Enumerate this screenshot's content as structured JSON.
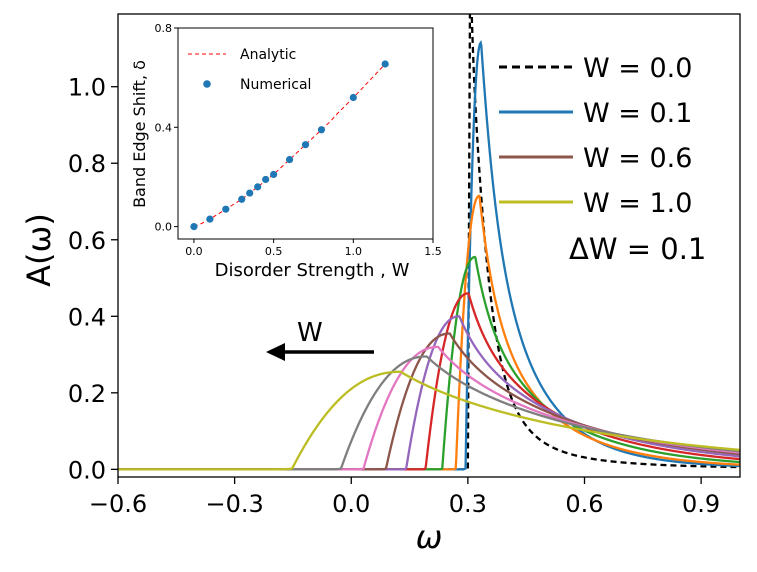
{
  "chart_data": [
    {
      "type": "line",
      "xlabel": "ω",
      "ylabel": "A(ω)",
      "xlim": [
        -0.6,
        1.0
      ],
      "ylim": [
        -0.02,
        1.19
      ],
      "xticks": [
        -0.6,
        -0.3,
        0.0,
        0.3,
        0.6,
        0.9
      ],
      "xtick_labels": [
        "−0.6",
        "−0.3",
        "0.0",
        "0.3",
        "0.6",
        "0.9"
      ],
      "yticks": [
        0.0,
        0.2,
        0.4,
        0.6,
        0.8,
        1.0
      ],
      "ytick_labels": [
        "0.0",
        "0.2",
        "0.4",
        "0.6",
        "0.8",
        "1.0"
      ],
      "grid": false,
      "legend_position": "top-right",
      "legend": [
        {
          "label": "W = 0.0",
          "color": "#000000",
          "dash": true
        },
        {
          "label": "W = 0.1",
          "color": "#1f77b4",
          "dash": false
        },
        {
          "label": "W = 0.6",
          "color": "#8c564b",
          "dash": false
        },
        {
          "label": "W = 1.0",
          "color": "#bcbd22",
          "dash": false
        }
      ],
      "legend_note": "ΔW = 0.1",
      "arrow_label": "W",
      "series": [
        {
          "W": 0.0,
          "color": "#000000",
          "dash": true,
          "edge": 0.3,
          "peak": 1.35
        },
        {
          "W": 0.1,
          "color": "#1f77b4",
          "dash": false,
          "edge": 0.294,
          "peak": 1.115
        },
        {
          "W": 0.2,
          "color": "#ff7f0e",
          "dash": false,
          "edge": 0.269,
          "peak": 0.715
        },
        {
          "W": 0.3,
          "color": "#2ca02c",
          "dash": false,
          "edge": 0.234,
          "peak": 0.555
        },
        {
          "W": 0.4,
          "color": "#d62728",
          "dash": false,
          "edge": 0.191,
          "peak": 0.46
        },
        {
          "W": 0.5,
          "color": "#9467bd",
          "dash": false,
          "edge": 0.141,
          "peak": 0.4
        },
        {
          "W": 0.6,
          "color": "#8c564b",
          "dash": false,
          "edge": 0.089,
          "peak": 0.355
        },
        {
          "W": 0.7,
          "color": "#e377c2",
          "dash": false,
          "edge": 0.031,
          "peak": 0.32
        },
        {
          "W": 0.8,
          "color": "#7f7f7f",
          "dash": false,
          "edge": -0.027,
          "peak": 0.295
        },
        {
          "W": 1.0,
          "color": "#bcbd22",
          "dash": false,
          "edge": -0.153,
          "peak": 0.255
        }
      ]
    },
    {
      "type": "scatter",
      "xlabel": "Disorder Strength , W",
      "ylabel": "Band Edge Shift, δ",
      "xlim": [
        -0.1,
        1.5
      ],
      "ylim": [
        -0.05,
        0.8
      ],
      "xticks": [
        0.0,
        0.5,
        1.0,
        1.5
      ],
      "xtick_labels": [
        "0.0",
        "0.5",
        "1.0",
        "1.5"
      ],
      "yticks": [
        0.0,
        0.4,
        0.8
      ],
      "ytick_labels": [
        "0.0",
        "0.4",
        "0.8"
      ],
      "legend_position": "top-left",
      "legend": [
        {
          "label": "Analytic",
          "color": "#ff0000",
          "style": "dashed-line"
        },
        {
          "label": "Numerical",
          "color": "#1f77b4",
          "style": "marker"
        }
      ],
      "numerical": {
        "x": [
          0.0,
          0.1,
          0.2,
          0.3,
          0.35,
          0.4,
          0.45,
          0.5,
          0.6,
          0.7,
          0.8,
          1.0,
          1.2
        ],
        "y": [
          0.0,
          0.03,
          0.07,
          0.11,
          0.135,
          0.16,
          0.19,
          0.21,
          0.27,
          0.33,
          0.39,
          0.52,
          0.655
        ]
      },
      "analytic": {
        "x": [
          0.0,
          0.05,
          0.1,
          0.15,
          0.2,
          0.25,
          0.3,
          0.35,
          0.4,
          0.45,
          0.5,
          0.55,
          0.6,
          0.65,
          0.7,
          0.75,
          0.8,
          0.85,
          0.9,
          0.95,
          1.0,
          1.05,
          1.1,
          1.15,
          1.2
        ],
        "y": [
          0.0,
          0.013,
          0.03,
          0.05,
          0.07,
          0.09,
          0.11,
          0.135,
          0.16,
          0.185,
          0.21,
          0.24,
          0.27,
          0.3,
          0.33,
          0.36,
          0.39,
          0.42,
          0.455,
          0.487,
          0.52,
          0.553,
          0.587,
          0.621,
          0.655
        ]
      }
    }
  ]
}
